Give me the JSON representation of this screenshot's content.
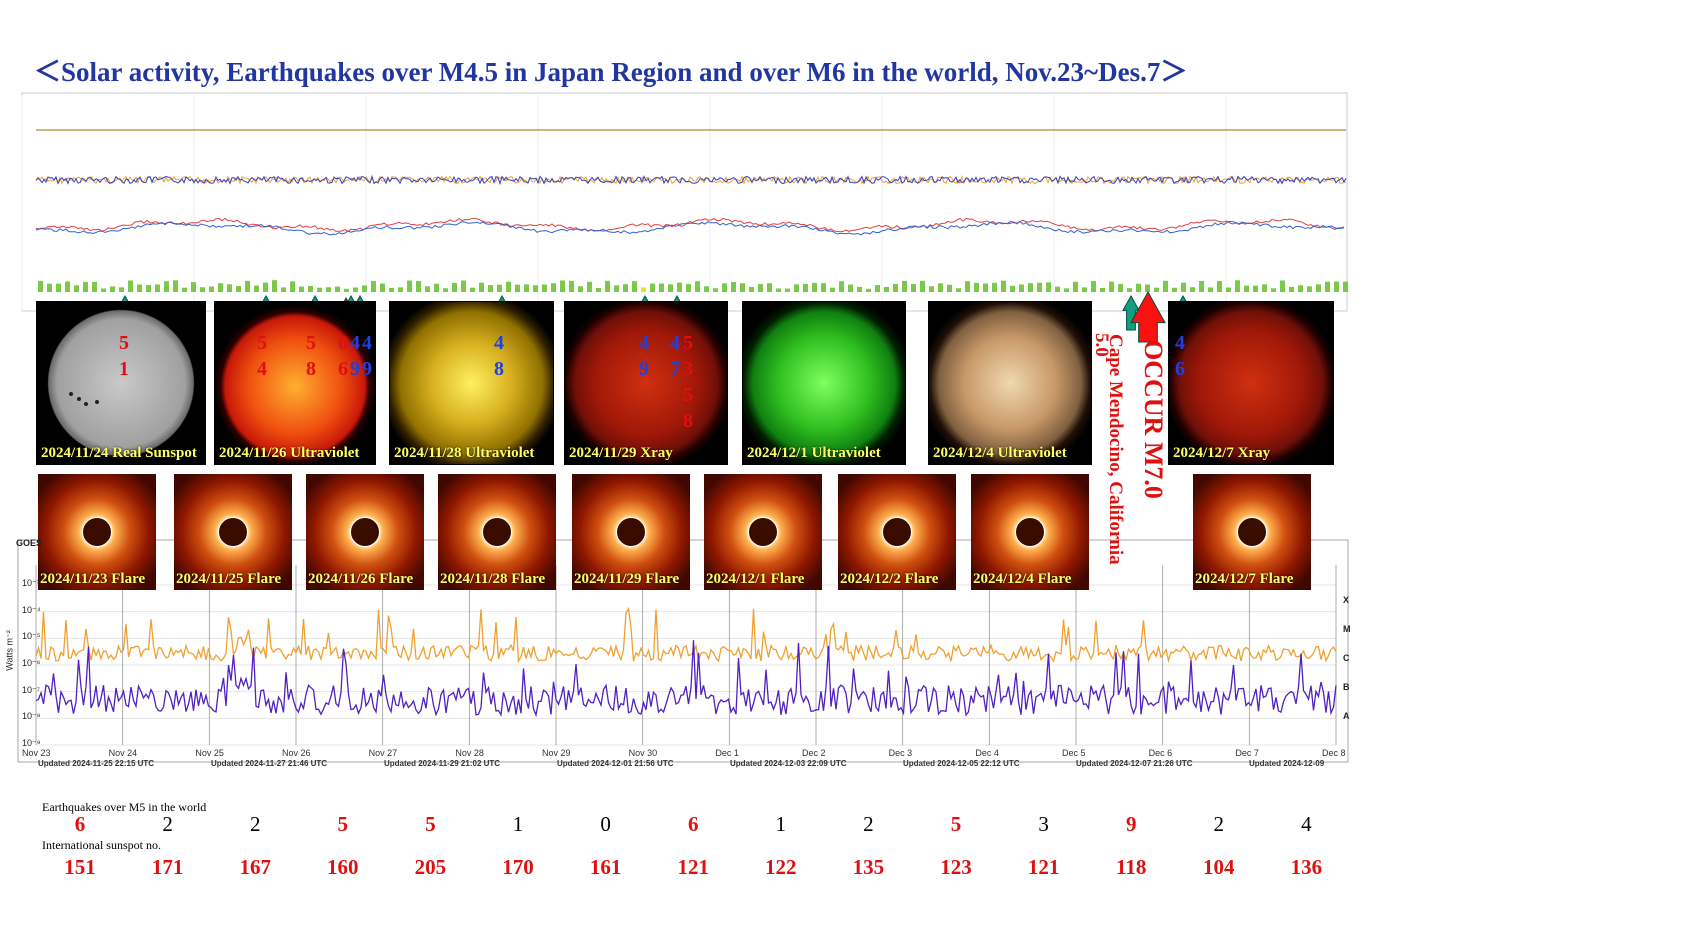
{
  "title": "＜Solar activity, Earthquakes over M4.5 in Japan Region and over M6 in the world, Nov.23~Des.7＞",
  "colors": {
    "title": "#2136a0",
    "red": "#e01010",
    "blue": "#2040e0",
    "caption": "#ffff66",
    "arrow": "#0d9a7a"
  },
  "sun_images": [
    {
      "caption": "2024/11/24 Real Sunspot",
      "kind": "white"
    },
    {
      "caption": "2024/11/26 Ultraviolet",
      "kind": "red"
    },
    {
      "caption": "2024/11/28 Ultraviolet",
      "kind": "yellow"
    },
    {
      "caption": "2024/11/29 Xray",
      "kind": "darkred"
    },
    {
      "caption": "2024/12/1 Ultraviolet",
      "kind": "green"
    },
    {
      "caption": "2024/12/4 Ultraviolet",
      "kind": "brown"
    },
    {
      "caption": "2024/12/7 Xray",
      "kind": "darkred"
    }
  ],
  "magnitudes": [
    {
      "img": 0,
      "col": 0,
      "chars": [
        "5",
        "1"
      ],
      "color": "red"
    },
    {
      "img": 1,
      "col": 0,
      "chars": [
        "5",
        "4"
      ],
      "color": "red"
    },
    {
      "img": 1,
      "col": 1,
      "chars": [
        "5",
        "8"
      ],
      "color": "red"
    },
    {
      "img": 1,
      "col": 2,
      "chars": [
        "6",
        "6"
      ],
      "color": "red"
    },
    {
      "img": 1,
      "col": 3,
      "chars": [
        "4",
        "9"
      ],
      "color": "blue"
    },
    {
      "img": 1,
      "col": 4,
      "chars": [
        "4",
        "9"
      ],
      "color": "blue"
    },
    {
      "img": 2,
      "col": 0,
      "chars": [
        "4",
        "8"
      ],
      "color": "blue"
    },
    {
      "img": 3,
      "col": 0,
      "chars": [
        "4",
        "9"
      ],
      "color": "blue"
    },
    {
      "img": 3,
      "col": 1,
      "chars": [
        "4",
        "7"
      ],
      "color": "blue"
    },
    {
      "img": 3,
      "col": 2,
      "chars": [
        "5",
        "3",
        "5",
        "8"
      ],
      "color": "red"
    },
    {
      "img": 6,
      "col": 0,
      "chars": [
        "4",
        "6"
      ],
      "color": "blue"
    }
  ],
  "occur_text": "OCCUR M7.0",
  "cape_text": "Cape Mendocino, California",
  "cape_mag": "5.0",
  "corona_images": [
    "2024/11/23 Flare",
    "2024/11/25 Flare",
    "2024/11/26 Flare",
    "2024/11/28 Flare",
    "2024/11/29 Flare",
    "2024/12/1 Flare",
    "2024/12/2 Flare",
    "2024/12/4 Flare",
    "2024/12/7 Flare"
  ],
  "xray_chart": {
    "y_label": "Watts m⁻²",
    "y_ticks": [
      "10⁻³",
      "10⁻⁴",
      "10⁻⁵",
      "10⁻⁶",
      "10⁻⁷",
      "10⁻⁸",
      "10⁻⁹"
    ],
    "class_labels": [
      "X",
      "M",
      "C",
      "B",
      "A"
    ],
    "x_ticks": [
      "Nov 23",
      "Nov 24",
      "Nov 25",
      "Nov 26",
      "Nov 27",
      "Nov 28",
      "Nov 29",
      "Nov 30",
      "Dec 1",
      "Dec 2",
      "Dec 3",
      "Dec 4",
      "Dec 5",
      "Dec 6",
      "Dec 7",
      "Dec 8"
    ],
    "updated": [
      "Updated 2024-11-25 22:15 UTC",
      "Updated 2024-11-27 21:46 UTC",
      "Updated 2024-11-29 21:02 UTC",
      "Updated 2024-12-01 21:56 UTC",
      "Updated 2024-12-03 22:09 UTC",
      "Updated 2024-12-05 22:12 UTC",
      "Updated 2024-12-07 21:26 UTC",
      "Updated 2024-12-09"
    ],
    "header_text": "GOES"
  },
  "chart_data": {
    "type": "table",
    "rows": [
      {
        "label": "Earthquakes over M5 in the world",
        "values": [
          6,
          2,
          2,
          5,
          5,
          1,
          0,
          6,
          1,
          2,
          5,
          3,
          9,
          2,
          4
        ],
        "red_flags": [
          true,
          false,
          false,
          true,
          true,
          false,
          false,
          true,
          false,
          false,
          true,
          false,
          true,
          false,
          false
        ]
      },
      {
        "label": "International sunspot no.",
        "values": [
          151,
          171,
          167,
          160,
          205,
          170,
          161,
          121,
          122,
          135,
          123,
          121,
          118,
          104,
          136
        ]
      }
    ]
  }
}
